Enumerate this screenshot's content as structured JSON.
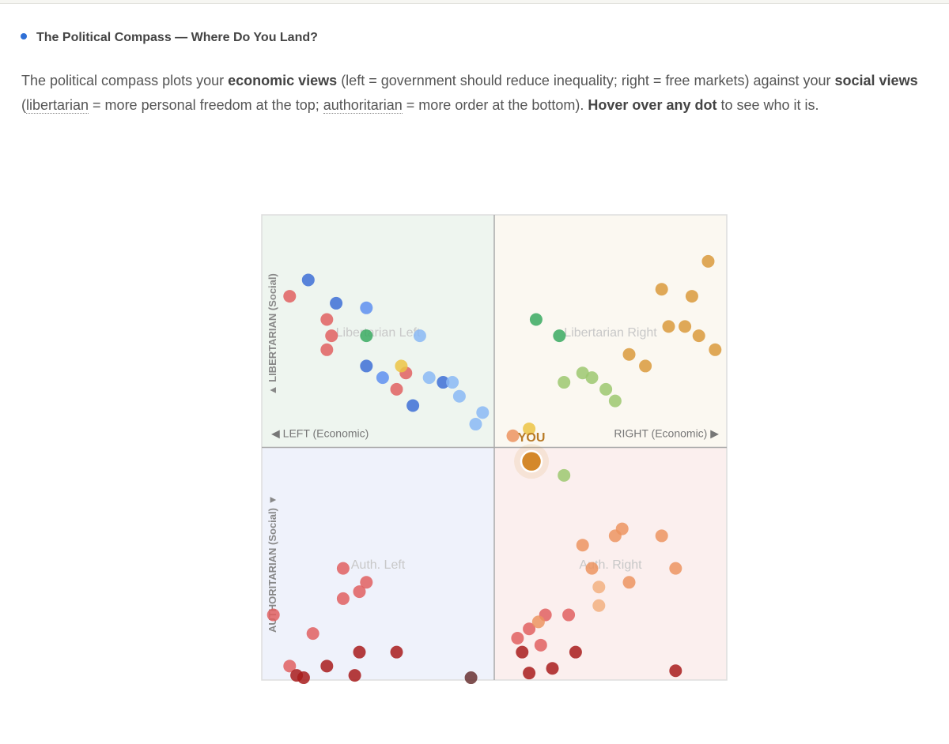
{
  "header": {
    "title": "The Political Compass — Where Do You Land?"
  },
  "intro": [
    {
      "text": "The political compass plots your ",
      "style": "plain"
    },
    {
      "text": "economic views",
      "style": "bold"
    },
    {
      "text": " (left = government should reduce inequality; right = free markets) against your ",
      "style": "plain"
    },
    {
      "text": "social views",
      "style": "bold"
    },
    {
      "text": " (",
      "style": "plain"
    },
    {
      "text": "libertarian",
      "style": "dotted"
    },
    {
      "text": " = more personal freedom at the top; ",
      "style": "plain"
    },
    {
      "text": "authoritarian",
      "style": "dotted"
    },
    {
      "text": " = more order at the bottom). ",
      "style": "plain"
    },
    {
      "text": "Hover over any dot",
      "style": "bold"
    },
    {
      "text": " to see who it is.",
      "style": "plain"
    }
  ],
  "chart_data": {
    "type": "scatter",
    "xlim": [
      -10,
      10
    ],
    "ylim": [
      -10,
      10
    ],
    "x_label_left": "◀ LEFT (Economic)",
    "x_label_right": "RIGHT (Economic) ▶",
    "y_label_top": "▲ LIBERTARIAN (Social)",
    "y_label_bottom": "AUTHORITARIAN (Social) ▼",
    "quadrants": [
      {
        "label": "Libertarian Left",
        "color": "#eef5ef"
      },
      {
        "label": "Libertarian Right",
        "color": "#fbf8f1"
      },
      {
        "label": "Auth. Left",
        "color": "#eff2fb"
      },
      {
        "label": "Auth. Right",
        "color": "#fbefee"
      }
    ],
    "series": [
      {
        "color": "#3d6fd6",
        "x": [
          -8.0,
          -6.8,
          -5.5,
          -2.2,
          -3.5
        ],
        "y": [
          7.2,
          6.2,
          3.5,
          2.8,
          1.8
        ]
      },
      {
        "color": "#5e8ff0",
        "x": [
          -5.5,
          -4.8
        ],
        "y": [
          6.0,
          3.0
        ]
      },
      {
        "color": "#8ab8f5",
        "x": [
          -3.2,
          -2.8,
          -1.8,
          -1.5,
          -0.5,
          -0.8
        ],
        "y": [
          4.8,
          3.0,
          2.8,
          2.2,
          1.5,
          1.0
        ]
      },
      {
        "color": "#e06060",
        "x": [
          -8.8,
          -7.2,
          -7.0,
          -7.2,
          -3.8,
          -4.2,
          -6.5,
          -5.5,
          -5.8,
          -6.5,
          -9.5,
          -7.8,
          -8.8,
          2.2,
          3.2,
          1.5,
          1.0,
          2.0
        ],
        "y": [
          6.5,
          5.5,
          4.8,
          4.2,
          3.2,
          2.5,
          -5.2,
          -5.8,
          -6.2,
          -6.5,
          -7.2,
          -8.0,
          -9.4,
          -7.2,
          -7.2,
          -7.8,
          -8.2,
          -8.5
        ]
      },
      {
        "color": "#a81c1c",
        "x": [
          -5.8,
          -4.2,
          -7.2,
          -8.5,
          -8.2,
          -6.0,
          1.2,
          3.5,
          1.5,
          2.5,
          7.8
        ],
        "y": [
          -8.8,
          -8.8,
          -9.4,
          -9.8,
          -9.9,
          -9.8,
          -8.8,
          -8.8,
          -9.7,
          -9.5,
          -9.6
        ]
      },
      {
        "color": "#6a3232",
        "x": [
          -1.0
        ],
        "y": [
          -9.9
        ]
      },
      {
        "color": "#3aaa62",
        "x": [
          -5.5,
          1.8,
          2.8
        ],
        "y": [
          4.8,
          5.5,
          4.8
        ]
      },
      {
        "color": "#9cc870",
        "x": [
          3.8,
          4.2,
          3.0,
          4.8,
          5.2,
          3.0
        ],
        "y": [
          3.2,
          3.0,
          2.8,
          2.5,
          2.0,
          -1.2
        ]
      },
      {
        "color": "#d99a3c",
        "x": [
          9.2,
          7.2,
          8.5,
          7.5,
          8.2,
          8.8,
          9.5,
          5.8,
          6.5
        ],
        "y": [
          8.0,
          6.8,
          6.5,
          5.2,
          5.2,
          4.8,
          4.2,
          4.0,
          3.5
        ]
      },
      {
        "color": "#ecc444",
        "x": [
          -4.0,
          1.5
        ],
        "y": [
          3.5,
          0.8
        ]
      },
      {
        "color": "#ec9460",
        "x": [
          0.8,
          5.5,
          5.2,
          7.2,
          3.8,
          4.2,
          7.8,
          5.8,
          1.9
        ],
        "y": [
          0.5,
          -3.5,
          -3.8,
          -3.8,
          -4.2,
          -5.2,
          -5.2,
          -5.8,
          -7.5
        ]
      },
      {
        "color": "#f2b080",
        "x": [
          4.5,
          4.5
        ],
        "y": [
          -6.0,
          -6.8
        ]
      }
    ],
    "you": {
      "label": "YOU",
      "x": 1.6,
      "y": -0.6,
      "color": "#d4882a"
    }
  }
}
